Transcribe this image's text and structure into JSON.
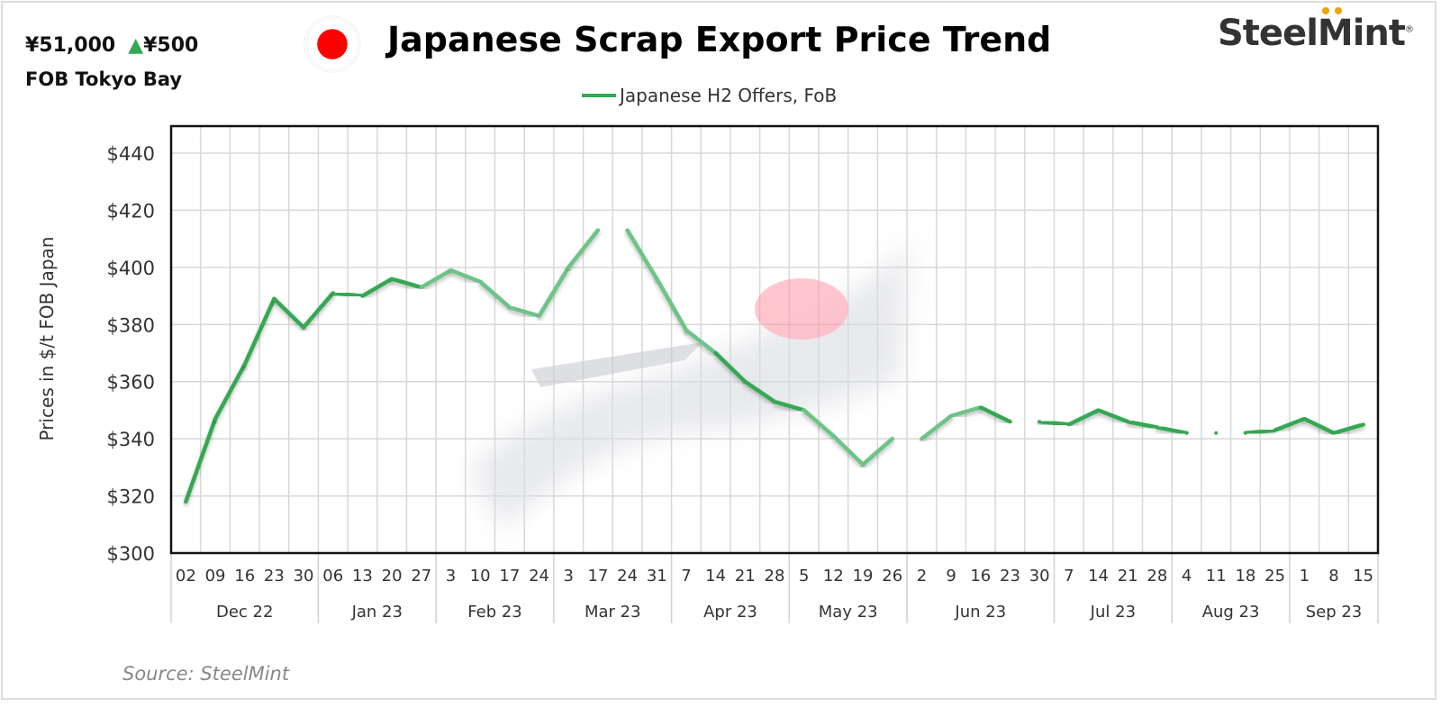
{
  "header": {
    "price": "¥51,000",
    "change_icon": "triangle-up-icon",
    "change": "¥500",
    "location": "FOB Tokyo Bay",
    "flag_icon": "japan-flag-icon",
    "logo": "SteelMint"
  },
  "source": "Source: SteelMint",
  "colors": {
    "line": "#34a853",
    "line_light": "#6cc486",
    "up": "#34a853"
  },
  "chart_data": {
    "type": "line",
    "title": "Japanese Scrap Export Price Trend",
    "ylabel": "Prices in $/t FOB Japan",
    "xlabel": "",
    "ylim": [
      300,
      440
    ],
    "yticks": [
      "$300",
      "$320",
      "$340",
      "$360",
      "$380",
      "$400",
      "$420",
      "$440"
    ],
    "grid": true,
    "legend_position": "top",
    "x_ticks": [
      "02",
      "09",
      "16",
      "23",
      "30",
      "06",
      "13",
      "20",
      "27",
      "3",
      "10",
      "17",
      "24",
      "3",
      "17",
      "24",
      "31",
      "7",
      "14",
      "21",
      "28",
      "5",
      "12",
      "19",
      "26",
      "2",
      "9",
      "16",
      "23",
      "30",
      "7",
      "14",
      "21",
      "28",
      "4",
      "11",
      "18",
      "25",
      "1",
      "8",
      "15"
    ],
    "months": [
      {
        "label": "Dec 22",
        "weeks": 5
      },
      {
        "label": "Jan 23",
        "weeks": 4
      },
      {
        "label": "Feb 23",
        "weeks": 4
      },
      {
        "label": "Mar 23",
        "weeks": 4
      },
      {
        "label": "Apr 23",
        "weeks": 4
      },
      {
        "label": "May 23",
        "weeks": 4
      },
      {
        "label": "Jun 23",
        "weeks": 5
      },
      {
        "label": "Jul 23",
        "weeks": 4
      },
      {
        "label": "Aug 23",
        "weeks": 4
      },
      {
        "label": "Sep 23",
        "weeks": 3
      }
    ],
    "series": [
      {
        "name": "Japanese H2 Offers, FoB",
        "values": [
          318,
          347,
          366,
          389,
          379,
          391,
          390,
          396,
          393,
          399,
          395,
          386,
          383,
          400,
          413,
          413,
          396,
          378,
          370,
          360,
          353,
          350,
          341,
          331,
          340,
          340,
          348,
          351,
          346,
          346,
          345,
          350,
          346,
          344,
          342,
          342,
          342,
          343,
          347,
          342,
          345
        ]
      }
    ]
  }
}
